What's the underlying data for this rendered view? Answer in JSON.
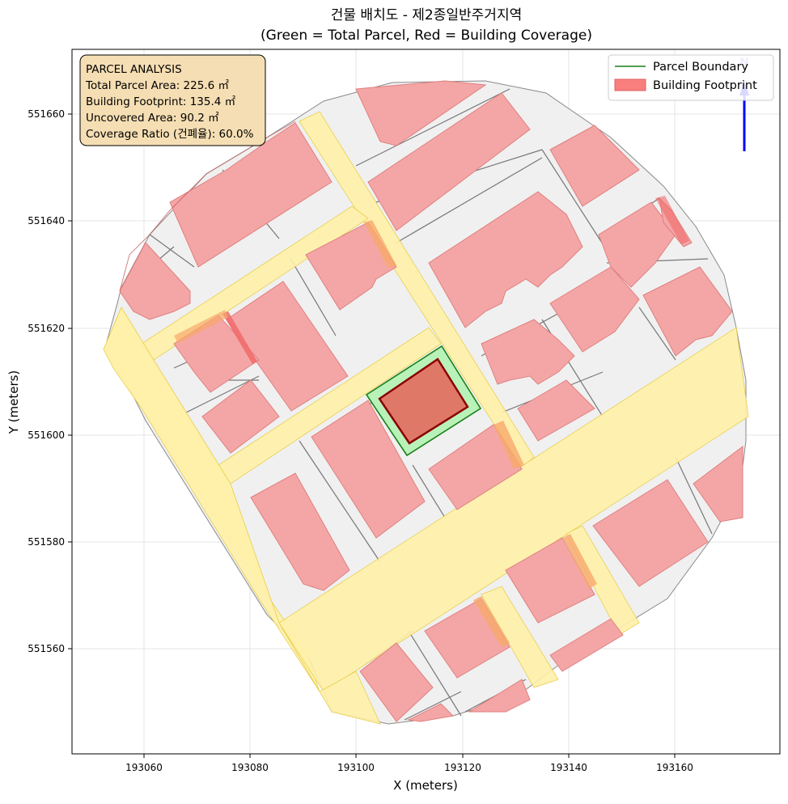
{
  "title": {
    "line1": "건물 배치도 - 제2종일반주거지역",
    "line2": "(Green = Total Parcel, Red = Building Coverage)"
  },
  "axes": {
    "xlabel": "X (meters)",
    "ylabel": "Y (meters)",
    "x_ticks": [
      "193060",
      "193080",
      "193100",
      "193120",
      "193140",
      "193160"
    ],
    "y_ticks": [
      "551660",
      "551640",
      "551620",
      "551600",
      "551580",
      "551560"
    ]
  },
  "info_box": {
    "heading": "PARCEL ANALYSIS",
    "line1": "Total Parcel Area: 225.6 ㎡",
    "line2": "Building Footprint: 135.4 ㎡",
    "line3": "Uncovered Area: 90.2 ㎡",
    "line4": "Coverage Ratio (건폐율): 60.0%"
  },
  "legend": {
    "parcel_boundary": "Parcel Boundary",
    "building_footprint": "Building Footprint"
  },
  "colors": {
    "parcel_edge": "#1a7f1a",
    "parcel_fill": "#b9f2b9",
    "building_fill": "#e07868",
    "building_edge": "#8b0000",
    "footprint_pink": "#f4a6a6",
    "road_yellow": "#fff1a8",
    "block_grey": "#f0f0f0",
    "north_arrow": "#0000ff",
    "info_bg": "#f5deb3"
  }
}
